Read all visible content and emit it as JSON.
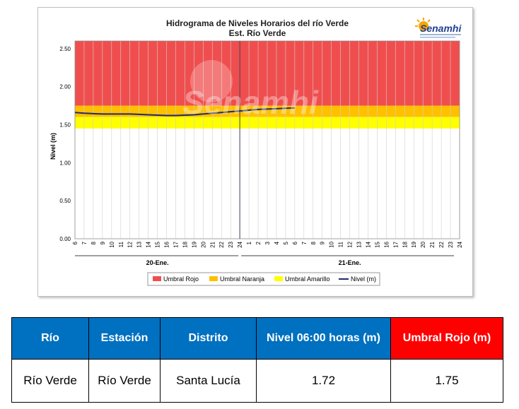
{
  "chart_data": {
    "type": "line",
    "title": "Hidrograma de Niveles Horarios del río Verde",
    "subtitle": "Est. Río Verde",
    "ylabel": "Nivel (m)",
    "ylim": [
      0,
      2.6
    ],
    "yticks": [
      "0.00",
      "0.50",
      "1.00",
      "1.50",
      "2.00",
      "2.50"
    ],
    "ytick_values": [
      0,
      0.5,
      1.0,
      1.5,
      2.0,
      2.5
    ],
    "x_ticks": [
      "6",
      "7",
      "8",
      "9",
      "10",
      "11",
      "12",
      "13",
      "14",
      "15",
      "16",
      "17",
      "18",
      "19",
      "20",
      "21",
      "22",
      "23",
      "24",
      "1",
      "2",
      "3",
      "4",
      "5",
      "6",
      "7",
      "8",
      "9",
      "10",
      "11",
      "12",
      "13",
      "14",
      "15",
      "16",
      "17",
      "18",
      "19",
      "20",
      "21",
      "22",
      "23",
      "24"
    ],
    "days": [
      "20-Ene.",
      "21-Ene."
    ],
    "thresholds": [
      {
        "name": "Umbral Rojo",
        "from": 1.75,
        "to": 2.6,
        "color": "#f04e4e"
      },
      {
        "name": "Umbral Naranja",
        "from": 1.6,
        "to": 1.75,
        "color": "#ffc000"
      },
      {
        "name": "Umbral Amarillo",
        "from": 1.45,
        "to": 1.6,
        "color": "#ffff00"
      }
    ],
    "series": [
      {
        "name": "Nivel (m)",
        "color": "#1f2a6b",
        "x": [
          0,
          1,
          2,
          3,
          4,
          5,
          6,
          7,
          8,
          9,
          10,
          11,
          12,
          13,
          14,
          15,
          16,
          17,
          18,
          19,
          20,
          21,
          22,
          23,
          24
        ],
        "values": [
          1.66,
          1.65,
          1.645,
          1.64,
          1.64,
          1.64,
          1.64,
          1.635,
          1.63,
          1.625,
          1.62,
          1.62,
          1.625,
          1.63,
          1.64,
          1.65,
          1.66,
          1.67,
          1.68,
          1.69,
          1.7,
          1.705,
          1.71,
          1.715,
          1.72
        ]
      }
    ],
    "legend": [
      "Umbral Rojo",
      "Umbral Naranja",
      "Umbral Amarillo",
      "Nivel (m)"
    ],
    "legend_position": "bottom",
    "grid": true
  },
  "logo": {
    "text": "Senamhi",
    "watermark": "Senamhi"
  },
  "table": {
    "headers": [
      "Río",
      "Estación",
      "Distrito",
      "Nivel  06:00 horas (m)",
      "Umbral Rojo (m)"
    ],
    "row": [
      "Río Verde",
      "Río Verde",
      "Santa Lucía",
      "1.72",
      "1.75"
    ]
  },
  "colors": {
    "header_blue": "#0070c0",
    "header_red": "#ff0000"
  }
}
